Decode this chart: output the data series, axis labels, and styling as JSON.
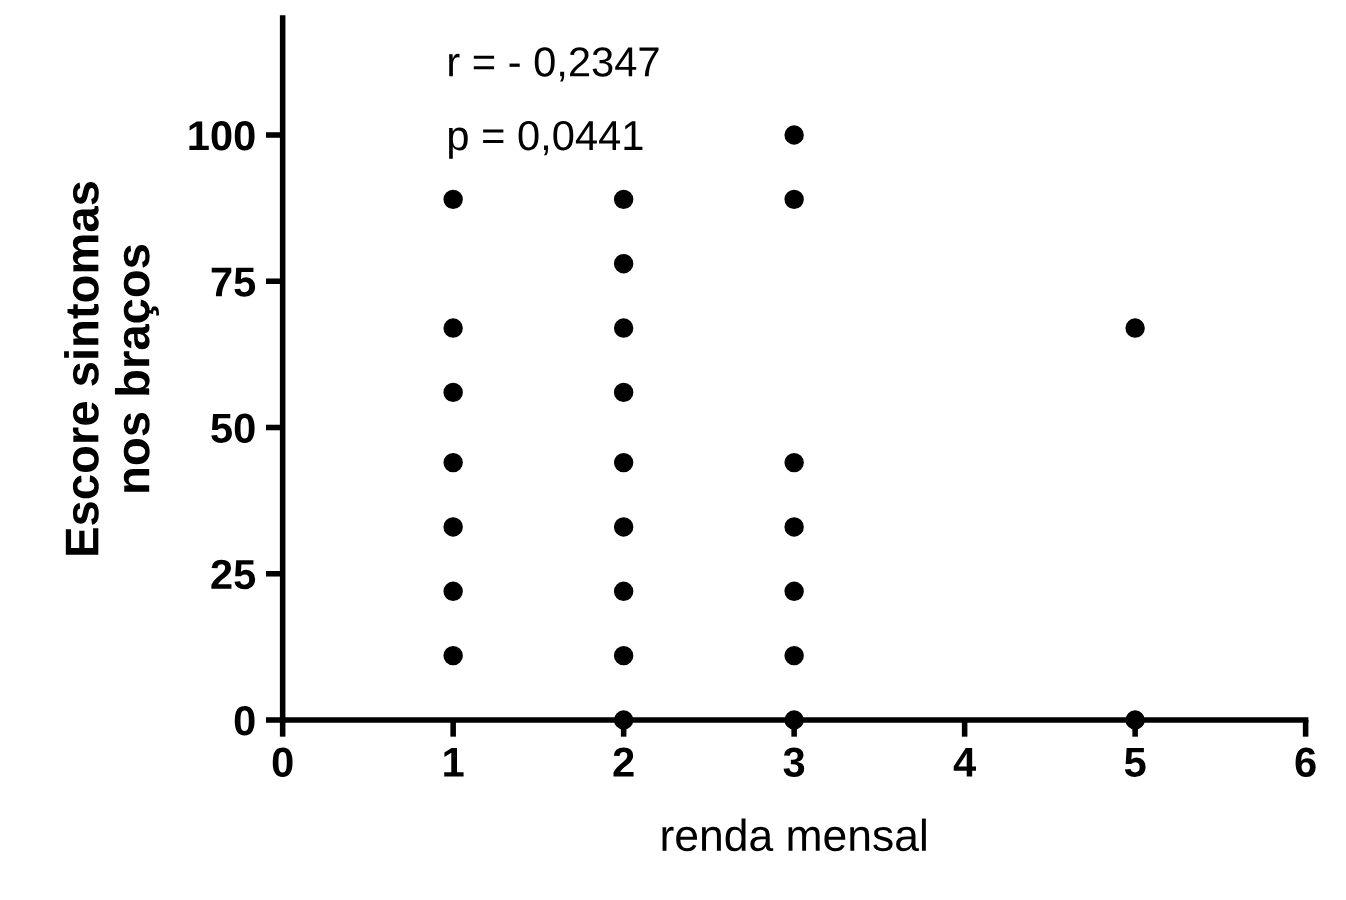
{
  "chart_data": {
    "type": "scatter",
    "xlabel": "renda mensal",
    "ylabel": "Escore sintomas\nnos braços",
    "annotations": [
      "r = - 0,2347",
      "p = 0,0441"
    ],
    "x": [
      1,
      1,
      1,
      1,
      1,
      1,
      1,
      2,
      2,
      2,
      2,
      2,
      2,
      2,
      2,
      2,
      3,
      3,
      3,
      3,
      3,
      3,
      3,
      5,
      5
    ],
    "values": [
      89,
      67,
      56,
      44,
      33,
      22,
      11,
      89,
      78,
      67,
      56,
      44,
      33,
      22,
      11,
      0,
      100,
      89,
      44,
      33,
      22,
      11,
      0,
      67,
      0
    ],
    "color": "#000000",
    "marker": "circle",
    "xlim": [
      0,
      6
    ],
    "xticks": [
      0,
      1,
      2,
      3,
      4,
      5,
      6
    ],
    "ylim": [
      0,
      120
    ],
    "yticks": [
      0,
      25,
      50,
      75,
      100
    ],
    "grid": false,
    "legend": false
  }
}
